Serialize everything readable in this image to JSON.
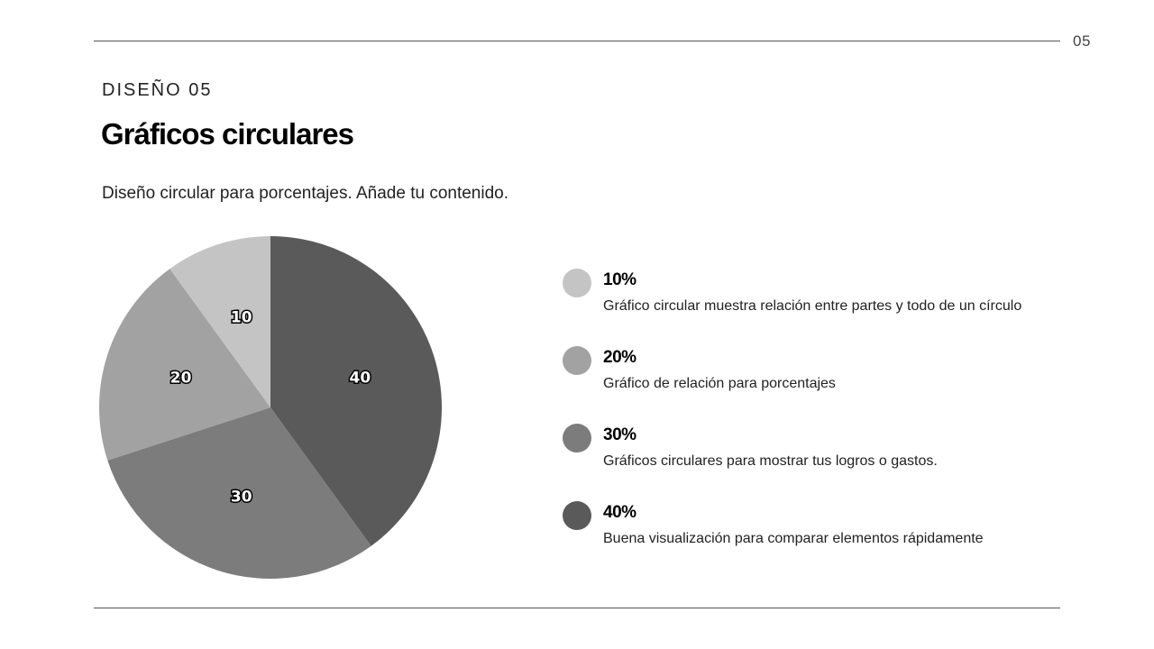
{
  "header": {
    "page_number": "05",
    "eyebrow": "DISEÑO 05",
    "title": "Gráficos circulares",
    "subtitle": "Diseño circular para porcentajes. Añade tu contenido."
  },
  "legend": [
    {
      "percent": "10%",
      "description": "Gráfico circular muestra relación entre partes y todo de un círculo",
      "color": "#c4c4c4"
    },
    {
      "percent": "20%",
      "description": "Gráfico de relación para porcentajes",
      "color": "#a2a2a2"
    },
    {
      "percent": "30%",
      "description": "Gráficos circulares para mostrar tus logros o gastos.",
      "color": "#7c7c7c"
    },
    {
      "percent": "40%",
      "description": "Buena visualización para comparar elementos rápidamente",
      "color": "#5a5a5a"
    }
  ],
  "chart_data": {
    "type": "pie",
    "categories": [
      "40",
      "30",
      "20",
      "10"
    ],
    "values": [
      40,
      30,
      20,
      10
    ],
    "labels": [
      "40",
      "30",
      "20",
      "10"
    ],
    "colors": [
      "#5a5a5a",
      "#7c7c7c",
      "#a2a2a2",
      "#c4c4c4"
    ],
    "start": "top",
    "direction": "clockwise"
  }
}
